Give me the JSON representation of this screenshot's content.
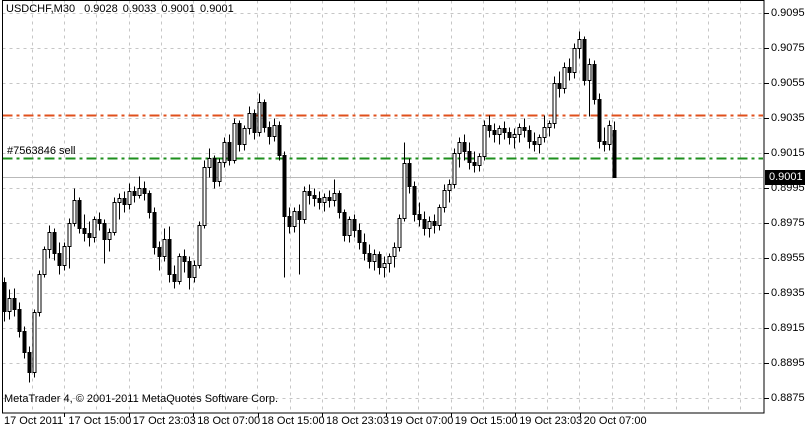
{
  "window_title": {
    "symbol_period": "USDCHF,M30",
    "open": "0.9028",
    "high": "0.9033",
    "low": "0.9001",
    "close": "0.9001"
  },
  "order_label": "#7563846 sell",
  "watermark": "MetaTrader 4, © 2001-2011 MetaQuotes Software Corp.",
  "price_axis": {
    "current_price": "0.9001",
    "labels": [
      "0.9095",
      "0.9075",
      "0.9055",
      "0.9035",
      "0.9015",
      "0.8995",
      "0.8975",
      "0.8955",
      "0.8935",
      "0.8915",
      "0.8895",
      "0.8875"
    ]
  },
  "colors": {
    "background": "#ffffff",
    "foreground": "#000000",
    "grid": "#c6c6c6",
    "bull_body": "#ffffff",
    "bear_body": "#000000",
    "candle_outline": "#000000",
    "stop_loss_line": "#e0501d",
    "open_order_line": "#1e8f1e",
    "current_price_line": "#b9b9b9",
    "badge_bg": "#000000",
    "badge_text": "#ffffff"
  },
  "chart_data": {
    "type": "candlestick",
    "symbol": "USDCHF",
    "timeframe": "M30",
    "title": "USDCHF,M30  0.9028 0.9033 0.9001 0.9001",
    "y_axis": {
      "min": 0.8875,
      "max": 0.9095,
      "tick_step": 0.002,
      "grid": true
    },
    "x_axis": {
      "grid": true,
      "tick_labels": [
        "17 Oct 2011",
        "17 Oct 15:00",
        "17 Oct 23:03",
        "18 Oct 07:00",
        "18 Oct 15:00",
        "18 Oct 23:03",
        "19 Oct 07:00",
        "19 Oct 15:00",
        "19 Oct 23:03",
        "20 Oct 07:00"
      ]
    },
    "levels": [
      {
        "name": "stop-loss",
        "price": 0.9037,
        "style": "dash-dot",
        "width": 2,
        "color": "#e0501d"
      },
      {
        "name": "sell-open-7563846",
        "price": 0.9012,
        "style": "dash-dot",
        "width": 2,
        "color": "#1e8f1e"
      },
      {
        "name": "current-bid",
        "price": 0.9001,
        "style": "solid",
        "width": 1,
        "color": "#b9b9b9"
      }
    ],
    "ohlc": [
      [
        0.8941,
        0.8944,
        0.8919,
        0.8925
      ],
      [
        0.8925,
        0.8937,
        0.892,
        0.8932
      ],
      [
        0.8932,
        0.8938,
        0.8922,
        0.8926
      ],
      [
        0.8926,
        0.893,
        0.891,
        0.8913
      ],
      [
        0.8913,
        0.8916,
        0.8898,
        0.8901
      ],
      [
        0.8901,
        0.8905,
        0.8884,
        0.889
      ],
      [
        0.889,
        0.8926,
        0.8887,
        0.8924
      ],
      [
        0.8924,
        0.8948,
        0.8922,
        0.8946
      ],
      [
        0.8946,
        0.8962,
        0.8944,
        0.896
      ],
      [
        0.896,
        0.8974,
        0.8955,
        0.897
      ],
      [
        0.897,
        0.8972,
        0.8954,
        0.8958
      ],
      [
        0.8958,
        0.8964,
        0.8946,
        0.8951
      ],
      [
        0.8951,
        0.8964,
        0.8948,
        0.8962
      ],
      [
        0.8962,
        0.8978,
        0.8949,
        0.8975
      ],
      [
        0.8975,
        0.8995,
        0.8973,
        0.8988
      ],
      [
        0.8988,
        0.899,
        0.8969,
        0.8972
      ],
      [
        0.8972,
        0.898,
        0.8965,
        0.8969
      ],
      [
        0.8969,
        0.8976,
        0.8962,
        0.8967
      ],
      [
        0.8967,
        0.8979,
        0.8964,
        0.8977
      ],
      [
        0.8977,
        0.8981,
        0.8971,
        0.8975
      ],
      [
        0.8975,
        0.8977,
        0.8952,
        0.8966
      ],
      [
        0.8966,
        0.8972,
        0.8959,
        0.897
      ],
      [
        0.897,
        0.899,
        0.8968,
        0.8987
      ],
      [
        0.8987,
        0.8992,
        0.8977,
        0.8989
      ],
      [
        0.8989,
        0.8993,
        0.8981,
        0.8986
      ],
      [
        0.8986,
        0.8998,
        0.8983,
        0.8993
      ],
      [
        0.8993,
        0.8996,
        0.8987,
        0.8991
      ],
      [
        0.8991,
        0.9002,
        0.8989,
        0.8995
      ],
      [
        0.8995,
        0.8999,
        0.8988,
        0.8992
      ],
      [
        0.8992,
        0.8994,
        0.8978,
        0.8981
      ],
      [
        0.8981,
        0.8984,
        0.8957,
        0.8961
      ],
      [
        0.8961,
        0.8965,
        0.8948,
        0.8956
      ],
      [
        0.8956,
        0.8972,
        0.8953,
        0.8966
      ],
      [
        0.8966,
        0.8973,
        0.8941,
        0.8946
      ],
      [
        0.8946,
        0.8951,
        0.8938,
        0.8942
      ],
      [
        0.8942,
        0.8958,
        0.894,
        0.8956
      ],
      [
        0.8956,
        0.896,
        0.8947,
        0.8953
      ],
      [
        0.8953,
        0.8956,
        0.8937,
        0.8944
      ],
      [
        0.8944,
        0.8954,
        0.8941,
        0.8951
      ],
      [
        0.8951,
        0.8976,
        0.8949,
        0.8974
      ],
      [
        0.8974,
        0.9011,
        0.8972,
        0.9007
      ],
      [
        0.9007,
        0.9018,
        0.9001,
        0.9012
      ],
      [
        0.9012,
        0.9014,
        0.8995,
        0.8999
      ],
      [
        0.8999,
        0.9012,
        0.8996,
        0.901
      ],
      [
        0.901,
        0.9024,
        0.9007,
        0.9021
      ],
      [
        0.9021,
        0.9026,
        0.9008,
        0.9011
      ],
      [
        0.9011,
        0.9035,
        0.9009,
        0.9032
      ],
      [
        0.9032,
        0.9034,
        0.9016,
        0.902
      ],
      [
        0.902,
        0.9031,
        0.9017,
        0.9029
      ],
      [
        0.9029,
        0.9042,
        0.9026,
        0.9038
      ],
      [
        0.9038,
        0.904,
        0.9023,
        0.9027
      ],
      [
        0.9027,
        0.9049,
        0.9025,
        0.9044
      ],
      [
        0.9044,
        0.9046,
        0.9027,
        0.903
      ],
      [
        0.903,
        0.9033,
        0.902,
        0.9025
      ],
      [
        0.9025,
        0.9035,
        0.9022,
        0.9031
      ],
      [
        0.9031,
        0.9033,
        0.9011,
        0.9014
      ],
      [
        0.9014,
        0.9016,
        0.8944,
        0.8979
      ],
      [
        0.8979,
        0.8984,
        0.8969,
        0.8973
      ],
      [
        0.8973,
        0.8984,
        0.897,
        0.8982
      ],
      [
        0.8982,
        0.8986,
        0.8946,
        0.8977
      ],
      [
        0.8977,
        0.8996,
        0.8975,
        0.8993
      ],
      [
        0.8993,
        0.8997,
        0.8986,
        0.8991
      ],
      [
        0.8991,
        0.8995,
        0.8985,
        0.8989
      ],
      [
        0.8989,
        0.8993,
        0.8983,
        0.8987
      ],
      [
        0.8987,
        0.8992,
        0.8982,
        0.899
      ],
      [
        0.899,
        0.8994,
        0.8984,
        0.8988
      ],
      [
        0.8988,
        0.9,
        0.8985,
        0.8992
      ],
      [
        0.8992,
        0.8994,
        0.8978,
        0.8981
      ],
      [
        0.8981,
        0.8983,
        0.8965,
        0.8968
      ],
      [
        0.8968,
        0.8979,
        0.8964,
        0.8977
      ],
      [
        0.8977,
        0.898,
        0.8967,
        0.8971
      ],
      [
        0.8971,
        0.8975,
        0.896,
        0.8964
      ],
      [
        0.8964,
        0.8969,
        0.8954,
        0.8958
      ],
      [
        0.8958,
        0.8963,
        0.8949,
        0.8953
      ],
      [
        0.8953,
        0.896,
        0.8948,
        0.8957
      ],
      [
        0.8957,
        0.8959,
        0.8946,
        0.895
      ],
      [
        0.895,
        0.8956,
        0.8944,
        0.8952
      ],
      [
        0.8952,
        0.8958,
        0.8947,
        0.8956
      ],
      [
        0.8956,
        0.8964,
        0.895,
        0.8961
      ],
      [
        0.8961,
        0.898,
        0.8959,
        0.8978
      ],
      [
        0.8978,
        0.9021,
        0.8976,
        0.9009
      ],
      [
        0.9009,
        0.9012,
        0.8992,
        0.8996
      ],
      [
        0.8996,
        0.8999,
        0.8976,
        0.898
      ],
      [
        0.898,
        0.8987,
        0.8973,
        0.8977
      ],
      [
        0.8977,
        0.8982,
        0.8968,
        0.8972
      ],
      [
        0.8972,
        0.8979,
        0.8967,
        0.8976
      ],
      [
        0.8976,
        0.898,
        0.8969,
        0.8974
      ],
      [
        0.8974,
        0.8986,
        0.8971,
        0.8984
      ],
      [
        0.8984,
        0.8997,
        0.8981,
        0.8994
      ],
      [
        0.8994,
        0.9,
        0.8987,
        0.8997
      ],
      [
        0.8997,
        0.9018,
        0.8995,
        0.9015
      ],
      [
        0.9015,
        0.9024,
        0.9007,
        0.9021
      ],
      [
        0.9021,
        0.9026,
        0.9011,
        0.9016
      ],
      [
        0.9016,
        0.9021,
        0.9006,
        0.901
      ],
      [
        0.901,
        0.9016,
        0.9004,
        0.9008
      ],
      [
        0.9008,
        0.9015,
        0.9005,
        0.9013
      ],
      [
        0.9013,
        0.9034,
        0.9011,
        0.9031
      ],
      [
        0.9031,
        0.9037,
        0.9024,
        0.9028
      ],
      [
        0.9028,
        0.9032,
        0.9021,
        0.9026
      ],
      [
        0.9026,
        0.9031,
        0.902,
        0.9029
      ],
      [
        0.9029,
        0.9033,
        0.9023,
        0.9027
      ],
      [
        0.9027,
        0.903,
        0.902,
        0.9024
      ],
      [
        0.9024,
        0.9029,
        0.9018,
        0.9026
      ],
      [
        0.9026,
        0.9032,
        0.9021,
        0.903
      ],
      [
        0.903,
        0.9035,
        0.9024,
        0.9028
      ],
      [
        0.9028,
        0.9031,
        0.9018,
        0.9022
      ],
      [
        0.9022,
        0.9027,
        0.9016,
        0.902
      ],
      [
        0.902,
        0.9026,
        0.9015,
        0.9024
      ],
      [
        0.9024,
        0.9037,
        0.9021,
        0.903
      ],
      [
        0.903,
        0.9034,
        0.9025,
        0.9032
      ],
      [
        0.9032,
        0.9059,
        0.9029,
        0.9055
      ],
      [
        0.9055,
        0.9062,
        0.9047,
        0.9052
      ],
      [
        0.9052,
        0.9067,
        0.9049,
        0.9064
      ],
      [
        0.9064,
        0.9069,
        0.9057,
        0.9061
      ],
      [
        0.9061,
        0.9078,
        0.9058,
        0.9075
      ],
      [
        0.9075,
        0.9085,
        0.9069,
        0.908
      ],
      [
        0.908,
        0.9082,
        0.9054,
        0.9057
      ],
      [
        0.9057,
        0.9069,
        0.9036,
        0.9066
      ],
      [
        0.9066,
        0.9068,
        0.9043,
        0.9046
      ],
      [
        0.9046,
        0.9049,
        0.9018,
        0.9022
      ],
      [
        0.9022,
        0.903,
        0.9016,
        0.902
      ],
      [
        0.902,
        0.9034,
        0.9017,
        0.9031
      ],
      [
        0.9028,
        0.9033,
        0.9001,
        0.9001
      ]
    ]
  }
}
